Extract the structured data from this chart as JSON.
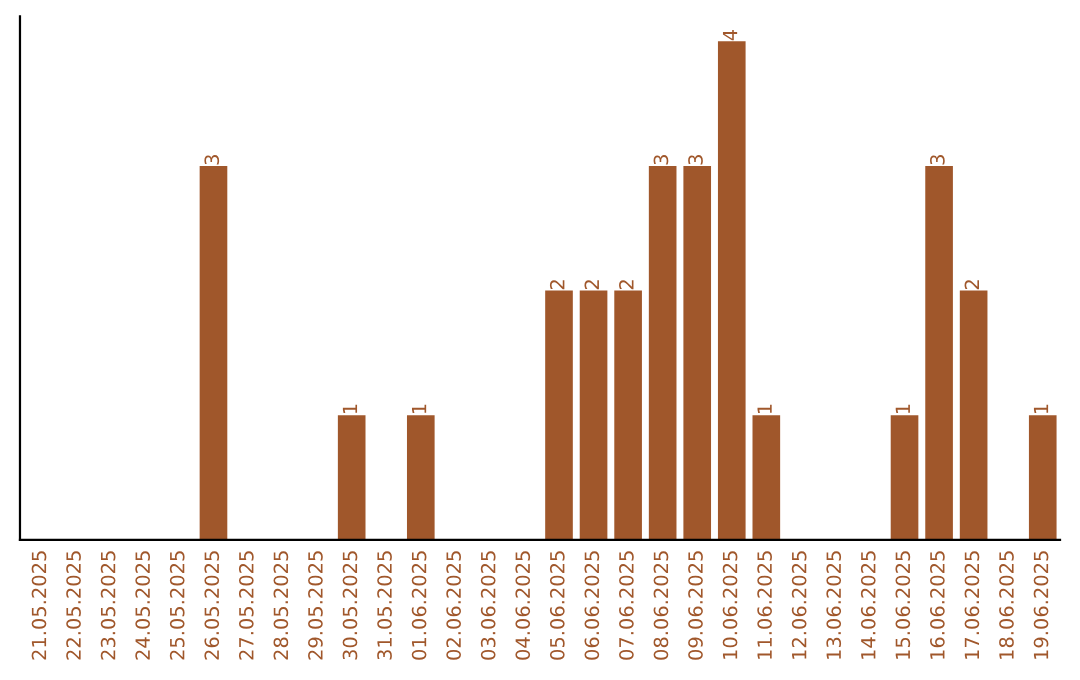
{
  "chart_data": {
    "type": "bar",
    "categories": [
      "21.05.2025",
      "22.05.2025",
      "23.05.2025",
      "24.05.2025",
      "25.05.2025",
      "26.05.2025",
      "27.05.2025",
      "28.05.2025",
      "29.05.2025",
      "30.05.2025",
      "31.05.2025",
      "01.06.2025",
      "02.06.2025",
      "03.06.2025",
      "04.06.2025",
      "05.06.2025",
      "06.06.2025",
      "07.06.2025",
      "08.06.2025",
      "09.06.2025",
      "10.06.2025",
      "11.06.2025",
      "12.06.2025",
      "13.06.2025",
      "14.06.2025",
      "15.06.2025",
      "16.06.2025",
      "17.06.2025",
      "18.06.2025",
      "19.06.2025"
    ],
    "values": [
      0,
      0,
      0,
      0,
      0,
      3,
      0,
      0,
      0,
      1,
      0,
      1,
      0,
      0,
      0,
      2,
      2,
      2,
      3,
      3,
      4,
      1,
      0,
      0,
      0,
      1,
      3,
      2,
      0,
      1
    ],
    "value_labels": [
      null,
      null,
      null,
      null,
      null,
      "3",
      null,
      null,
      null,
      "1",
      null,
      "1",
      null,
      null,
      null,
      "2",
      "2",
      "2",
      "3",
      "3",
      "4",
      "1",
      null,
      null,
      null,
      "1",
      "3",
      "2",
      null,
      "1"
    ],
    "color": "#a0572b",
    "tick_labels": "x",
    "grid": false,
    "legend": false
  }
}
